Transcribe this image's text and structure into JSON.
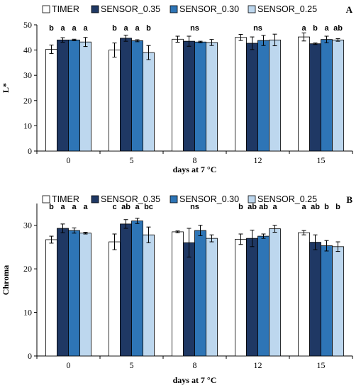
{
  "chart_data": [
    {
      "type": "bar",
      "panel_label": "A",
      "ylabel": "L*",
      "xlabel": "days at 7 °C",
      "ylim": [
        0,
        50
      ],
      "yticks": [
        0,
        10,
        20,
        30,
        40,
        50
      ],
      "categories": [
        "0",
        "5",
        "8",
        "12",
        "15"
      ],
      "series": [
        {
          "name": "TIMER",
          "color": "#ffffff",
          "values": [
            40.3,
            40.0,
            44.3,
            45.0,
            45.2
          ],
          "errors": [
            1.7,
            2.8,
            1.2,
            1.2,
            1.6
          ]
        },
        {
          "name": "SENSOR_0.35",
          "color": "#1f3864",
          "values": [
            44.0,
            44.7,
            43.5,
            42.7,
            42.5
          ],
          "errors": [
            0.9,
            1.2,
            2.0,
            2.5,
            0.3
          ]
        },
        {
          "name": "SENSOR_0.30",
          "color": "#2e75b6",
          "values": [
            44.0,
            43.7,
            43.2,
            43.8,
            44.2
          ],
          "errors": [
            0.3,
            0.4,
            0.3,
            2.0,
            1.3
          ]
        },
        {
          "name": "SENSOR_0.25",
          "color": "#bdd7ee",
          "values": [
            43.2,
            39.0,
            43.0,
            44.0,
            44.0
          ],
          "errors": [
            1.8,
            2.8,
            1.2,
            2.3,
            0.5
          ]
        }
      ],
      "significance": [
        {
          "category": "0",
          "labels": [
            "b",
            "a",
            "a",
            "a"
          ]
        },
        {
          "category": "5",
          "labels": [
            "b",
            "a",
            "a",
            "b"
          ]
        },
        {
          "category": "8",
          "labels": [
            "ns"
          ]
        },
        {
          "category": "12",
          "labels": [
            "ns"
          ]
        },
        {
          "category": "15",
          "labels": [
            "a",
            "b",
            "a",
            "ab"
          ]
        }
      ]
    },
    {
      "type": "bar",
      "panel_label": "B",
      "ylabel": "Chroma",
      "xlabel": "days at 7 °C",
      "ylim": [
        0,
        35
      ],
      "yticks": [
        0,
        10,
        20,
        30
      ],
      "categories": [
        "0",
        "5",
        "8",
        "12",
        "15"
      ],
      "series": [
        {
          "name": "TIMER",
          "color": "#ffffff",
          "values": [
            26.7,
            26.2,
            28.5,
            26.8,
            28.3
          ],
          "errors": [
            0.8,
            1.8,
            0.2,
            1.2,
            0.5
          ]
        },
        {
          "name": "SENSOR_0.35",
          "color": "#1f3864",
          "values": [
            29.3,
            30.3,
            26.0,
            27.0,
            26.1
          ],
          "errors": [
            1.0,
            1.0,
            3.3,
            1.9,
            1.7
          ]
        },
        {
          "name": "SENSOR_0.30",
          "color": "#2e75b6",
          "values": [
            28.8,
            31.0,
            28.8,
            27.5,
            25.3
          ],
          "errors": [
            0.6,
            0.6,
            1.2,
            0.5,
            1.2
          ]
        },
        {
          "name": "SENSOR_0.25",
          "color": "#bdd7ee",
          "values": [
            28.2,
            27.8,
            27.0,
            29.2,
            25.1
          ],
          "errors": [
            0.2,
            1.8,
            0.8,
            0.8,
            1.1
          ]
        }
      ],
      "significance": [
        {
          "category": "0",
          "labels": [
            "b",
            "a",
            "a",
            "a"
          ]
        },
        {
          "category": "5",
          "labels": [
            "c",
            "ab",
            "a",
            "bc"
          ]
        },
        {
          "category": "8",
          "labels": [
            "ns"
          ]
        },
        {
          "category": "12",
          "labels": [
            "b",
            "ab",
            "ab",
            "a"
          ]
        },
        {
          "category": "15",
          "labels": [
            "a",
            "ab",
            "b",
            "b"
          ]
        }
      ]
    }
  ]
}
